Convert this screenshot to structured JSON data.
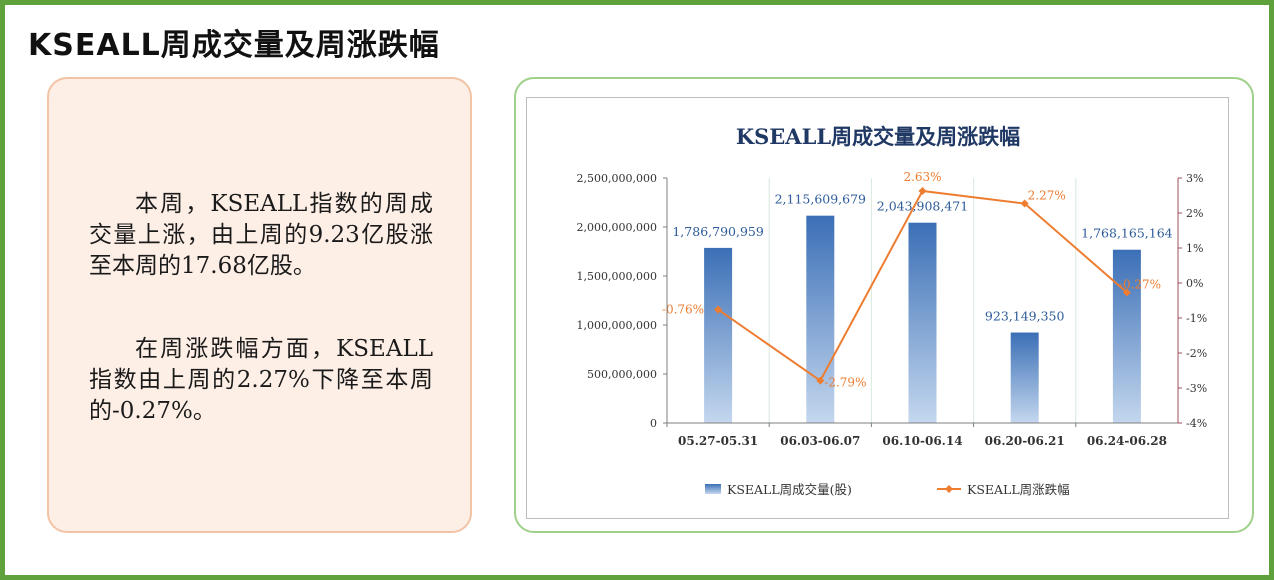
{
  "page": {
    "title": "KSEALL周成交量及周涨跌幅",
    "paragraph_1": "本周，KSEALL指数的周成交量上涨，由上周的9.23亿股涨至本周的17.68亿股。",
    "paragraph_2": "在周涨跌幅方面，KSEALL指数由上周的2.27%下降至本周的-0.27%。"
  },
  "colors": {
    "frame": "#5fa13c",
    "bar_top": "#3b6fb6",
    "bar_bottom": "#c4d7ee",
    "line": "#ed7d31",
    "right_axis": "#a14f58",
    "title": "#1f3864"
  },
  "chart_data": {
    "type": "bar+line",
    "title": "KSEALL周成交量及周涨跌幅",
    "categories": [
      "05.27-05.31",
      "06.03-06.07",
      "06.10-06.14",
      "06.20-06.21",
      "06.24-06.28"
    ],
    "series": [
      {
        "name": "KSEALL周成交量(股)",
        "type": "bar",
        "axis": "left",
        "values": [
          1786790959,
          2115609679,
          2043908471,
          923149350,
          1768165164
        ],
        "labels": [
          "1,786,790,959",
          "2,115,609,679",
          "2,043,908,471",
          "923,149,350",
          "1,768,165,164"
        ]
      },
      {
        "name": "KSEALL周涨跌幅",
        "type": "line",
        "axis": "right",
        "values": [
          -0.76,
          -2.79,
          2.63,
          2.27,
          -0.27
        ],
        "labels": [
          "-0.76%",
          "-2.79%",
          "2.63%",
          "2.27%",
          "-0.27%"
        ]
      }
    ],
    "y_left": {
      "range": [
        0,
        2500000000
      ],
      "ticks": [
        0,
        500000000,
        1000000000,
        1500000000,
        2000000000,
        2500000000
      ],
      "tick_labels": [
        "0",
        "500,000,000",
        "1,000,000,000",
        "1,500,000,000",
        "2,000,000,000",
        "2,500,000,000"
      ]
    },
    "y_right": {
      "range": [
        -4,
        3
      ],
      "ticks": [
        -4,
        -3,
        -2,
        -1,
        0,
        1,
        2,
        3
      ],
      "tick_labels": [
        "-4%",
        "-3%",
        "-2%",
        "-1%",
        "0%",
        "1%",
        "2%",
        "3%"
      ]
    },
    "legend_position": "bottom",
    "grid": "vertical"
  }
}
